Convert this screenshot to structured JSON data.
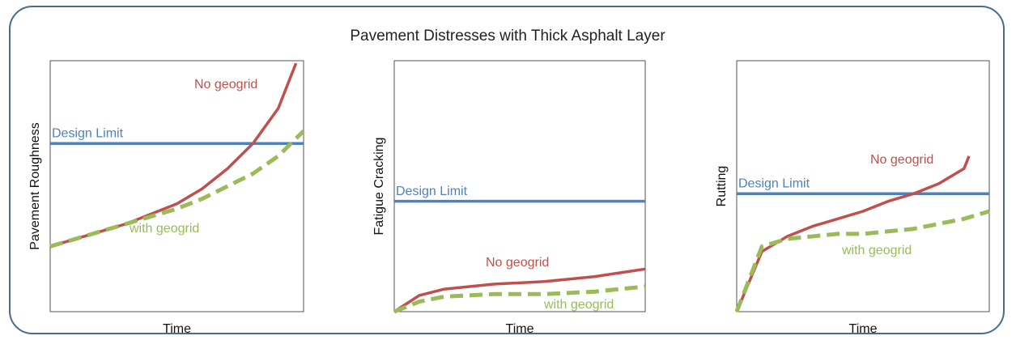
{
  "title": "Pavement Distresses with Thick Asphalt Layer",
  "chart_data": [
    {
      "type": "line",
      "x_label": "Time",
      "y_label": "Pavement Roughness",
      "xlim": [
        0,
        10
      ],
      "ylim": [
        0,
        100
      ],
      "design_limit": {
        "label": "Design Limit",
        "value": 67,
        "color": "#4f81bd"
      },
      "series": [
        {
          "name": "No geogrid",
          "color": "#c0504d",
          "dashed": false,
          "x": [
            0,
            1,
            2,
            3,
            4,
            5,
            6,
            7,
            8,
            9,
            9.7
          ],
          "values": [
            26,
            29,
            32,
            35,
            39,
            43,
            49,
            57,
            67,
            81,
            99
          ]
        },
        {
          "name": "with geogrid",
          "color": "#9bbb59",
          "dashed": true,
          "x": [
            0,
            1,
            2,
            3,
            4,
            5,
            6,
            7,
            8,
            9,
            10
          ],
          "values": [
            26,
            29,
            32,
            35,
            38,
            41,
            45,
            50,
            55,
            62,
            72
          ]
        }
      ]
    },
    {
      "type": "line",
      "x_label": "Time",
      "y_label": "Fatigue Cracking",
      "xlim": [
        0,
        10
      ],
      "ylim": [
        0,
        100
      ],
      "design_limit": {
        "label": "Design Limit",
        "value": 44,
        "color": "#4f81bd"
      },
      "series": [
        {
          "name": "No geogrid",
          "color": "#c0504d",
          "dashed": false,
          "x": [
            0,
            1,
            2,
            4,
            6,
            8,
            10
          ],
          "values": [
            0,
            6.5,
            9,
            11,
            12,
            14,
            17
          ]
        },
        {
          "name": "with geogrid",
          "color": "#9bbb59",
          "dashed": true,
          "x": [
            0,
            1,
            2,
            4,
            6,
            8,
            10
          ],
          "values": [
            0,
            4,
            6,
            7,
            7,
            8,
            10
          ]
        }
      ]
    },
    {
      "type": "line",
      "x_label": "Time",
      "y_label": "Rutting",
      "xlim": [
        0,
        10
      ],
      "ylim": [
        0,
        100
      ],
      "design_limit": {
        "label": "Design Limit",
        "value": 47,
        "color": "#4f81bd"
      },
      "series": [
        {
          "name": "No geogrid",
          "color": "#c0504d",
          "dashed": false,
          "x": [
            0,
            1,
            2,
            3,
            4,
            5,
            6,
            7,
            8,
            9,
            9.2
          ],
          "values": [
            0,
            24,
            30,
            34,
            37,
            40,
            44,
            47,
            51,
            57,
            62
          ]
        },
        {
          "name": "with geogrid",
          "color": "#9bbb59",
          "dashed": true,
          "x": [
            0,
            1,
            2,
            3,
            4,
            5,
            6,
            7,
            8,
            9,
            10
          ],
          "values": [
            0,
            26,
            29,
            30,
            31,
            31,
            32,
            33,
            35,
            37,
            40
          ]
        }
      ]
    }
  ]
}
